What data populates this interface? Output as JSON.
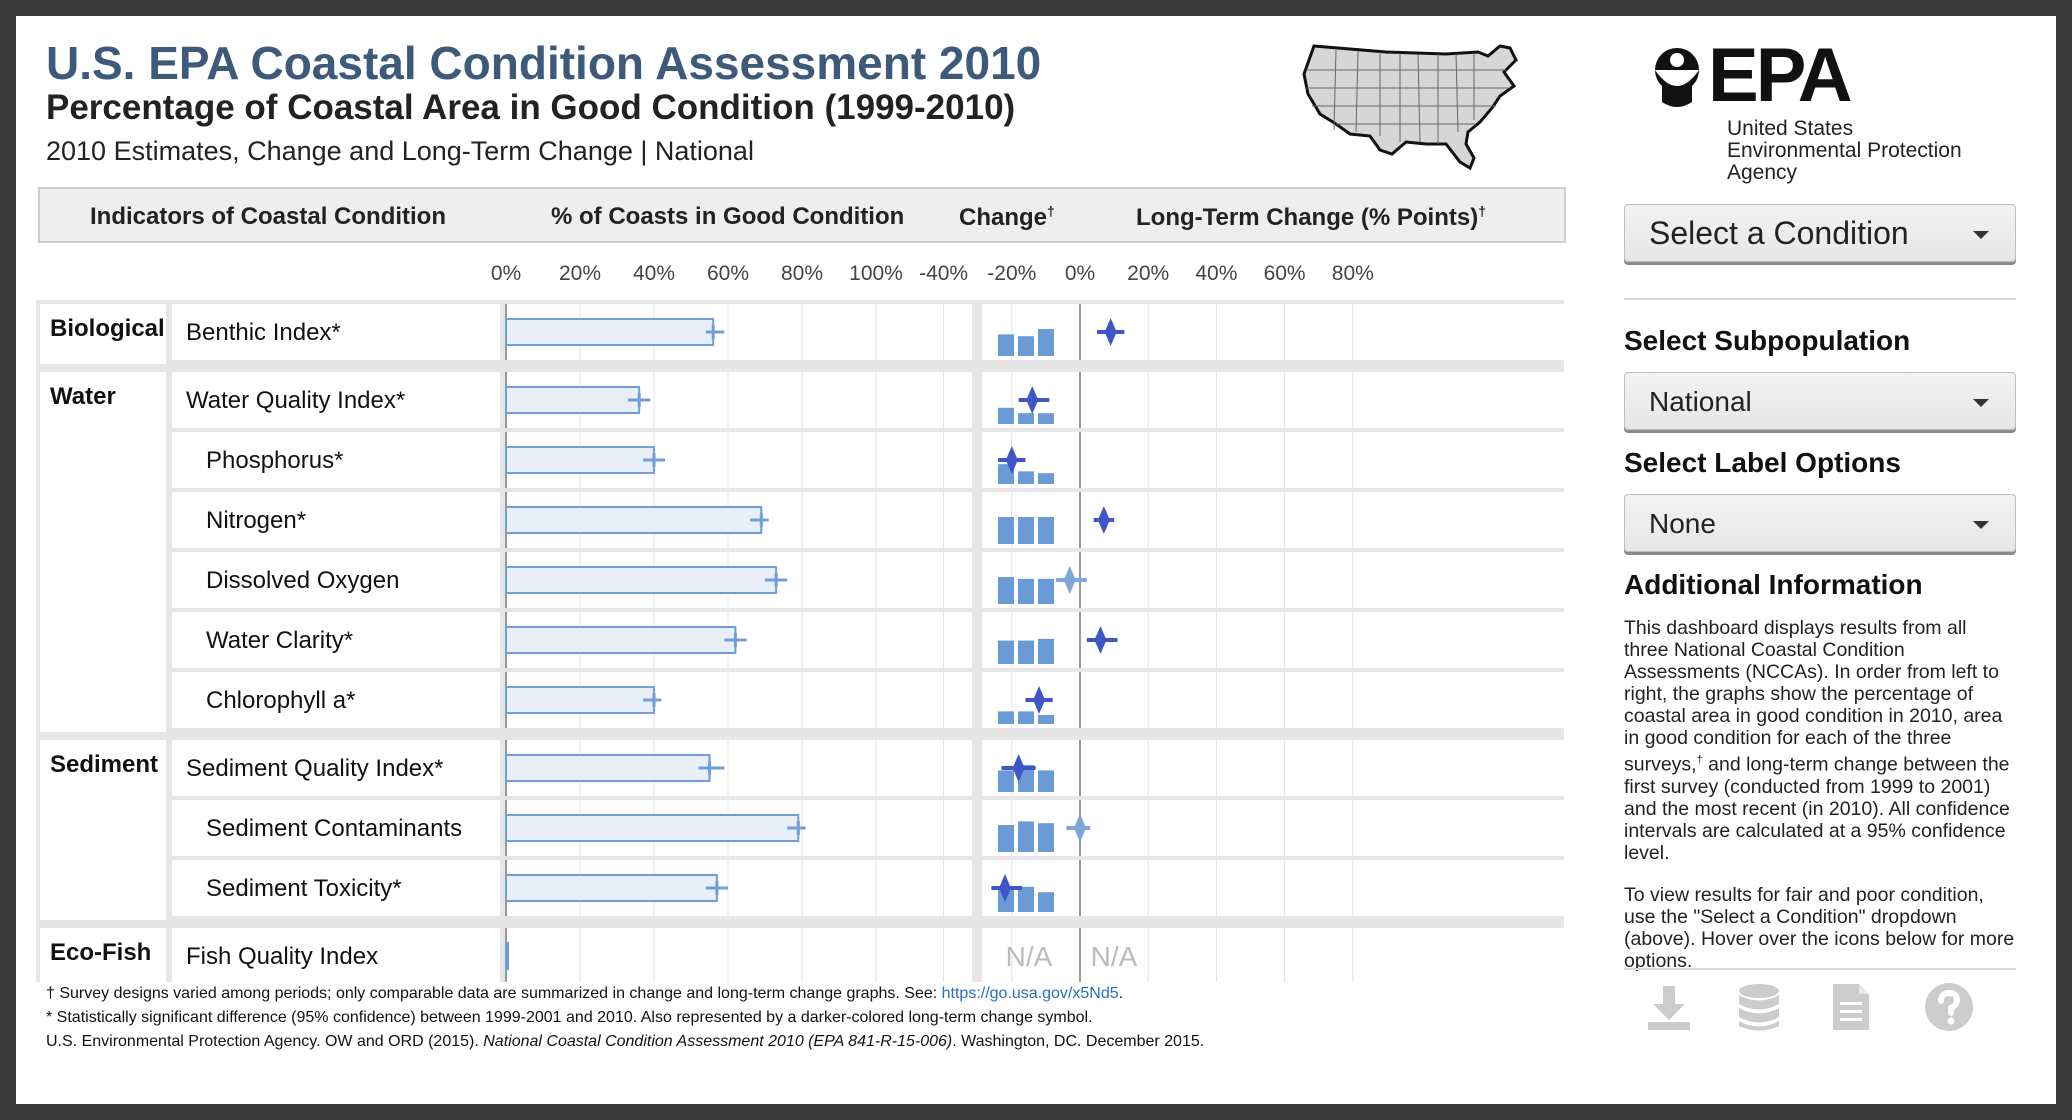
{
  "header": {
    "title": "U.S. EPA Coastal Condition Assessment 2010",
    "subtitle": "Percentage of Coastal Area in Good Condition (1999-2010)",
    "subsubtitle": "2010 Estimates, Change and Long-Term Change | National"
  },
  "logo": {
    "mark": "EPA",
    "line1": "United States",
    "line2": "Environmental Protection",
    "line3": "Agency"
  },
  "table_headers": {
    "indicators": "Indicators of Coastal Condition",
    "percent": "% of Coasts in Good Condition",
    "change": "Change",
    "longterm": "Long-Term Change (% Points)",
    "dagger": "†"
  },
  "sidebar": {
    "condition_dropdown": "Select a Condition",
    "subpop_heading": "Select Subpopulation",
    "subpop_dropdown": "National",
    "label_heading": "Select Label Options",
    "label_dropdown": "None",
    "info_heading": "Additional Information",
    "info_p1_a": "This dashboard displays results from all three National Coastal Condition Assessments (NCCAs). In order from left to right, the graphs show the percentage of coastal area in good condition in 2010, area in good condition for each of the three surveys,",
    "info_p1_dagger": "†",
    "info_p1_b": " and long-term change between the first survey (conducted from 1999 to 2001) and the most recent (in 2010). All confidence intervals are calculated at a 95% confidence level.",
    "info_p2": "To view results for fair and poor condition, use the \"Select a Condition\" dropdown (above). Hover over the icons below for more options.",
    "icons": [
      "download-icon",
      "database-icon",
      "document-icon",
      "help-icon"
    ]
  },
  "footnotes": {
    "f1": "† Survey designs varied among periods; only comparable data are summarized in change and long-term change graphs. See: ",
    "f1_link": "https://go.usa.gov/x5Nd5",
    "f1_end": ".",
    "f2": "* Statistically significant difference (95% confidence) between 1999-2001 and 2010. Also represented by a darker-colored long-term change symbol.",
    "f3_a": "U.S. Environmental Protection Agency. OW and ORD (2015). ",
    "f3_b": "National Coastal Condition Assessment 2010 (EPA 841-R-15-006)",
    "f3_c": ". Washington, DC. December 2015."
  },
  "colors": {
    "title": "#3d5a7a",
    "bar_fill": "#e8eff8",
    "bar_stroke": "#6f9fd6",
    "change_bar": "#6b9bd6",
    "significant_marker": "#3f56c7",
    "nonsignificant_marker": "#7ea6dc",
    "na_text": "#bbbbbb"
  },
  "chart_data": {
    "type": "bar",
    "axis_percent": {
      "ticks": [
        "0%",
        "20%",
        "40%",
        "60%",
        "80%",
        "100%"
      ],
      "range": [
        0,
        100
      ]
    },
    "axis_longterm": {
      "ticks": [
        "-40%",
        "-20%",
        "0%",
        "20%",
        "40%",
        "60%",
        "80%"
      ],
      "range": [
        -40,
        80
      ]
    },
    "na_label": "N/A",
    "groups": [
      {
        "name": "Biological",
        "rows": [
          {
            "label": "Benthic Index*",
            "indent": false,
            "value": 56,
            "ci": [
              54,
              59
            ],
            "change": [
              12,
              11,
              15
            ],
            "longterm": 9,
            "lt_ci": [
              5,
              13
            ],
            "significant": true
          }
        ]
      },
      {
        "name": "Water",
        "rows": [
          {
            "label": "Water Quality Index*",
            "indent": false,
            "value": 36,
            "ci": [
              33,
              39
            ],
            "change": [
              9,
              6,
              6
            ],
            "longterm": -14,
            "lt_ci": [
              -18,
              -9
            ],
            "significant": true
          },
          {
            "label": "Phosphorus*",
            "indent": true,
            "value": 40,
            "ci": [
              37,
              43
            ],
            "change": [
              11,
              7,
              6
            ],
            "longterm": -20,
            "lt_ci": [
              -24,
              -16
            ],
            "significant": true
          },
          {
            "label": "Nitrogen*",
            "indent": true,
            "value": 69,
            "ci": [
              66,
              71
            ],
            "change": [
              15,
              15,
              15
            ],
            "longterm": 7,
            "lt_ci": [
              4,
              10
            ],
            "significant": true
          },
          {
            "label": "Dissolved Oxygen",
            "indent": true,
            "value": 73,
            "ci": [
              70,
              76
            ],
            "change": [
              15,
              14,
              14
            ],
            "longterm": -3,
            "lt_ci": [
              -7,
              2
            ],
            "significant": false
          },
          {
            "label": "Water Clarity*",
            "indent": true,
            "value": 62,
            "ci": [
              59,
              65
            ],
            "change": [
              13,
              13,
              14
            ],
            "longterm": 6,
            "lt_ci": [
              2,
              11
            ],
            "significant": true
          },
          {
            "label": "Chlorophyll a*",
            "indent": true,
            "value": 40,
            "ci": [
              37,
              42
            ],
            "change": [
              7,
              7,
              5
            ],
            "longterm": -12,
            "lt_ci": [
              -16,
              -8
            ],
            "significant": true
          }
        ]
      },
      {
        "name": "Sediment",
        "rows": [
          {
            "label": "Sediment Quality Index*",
            "indent": false,
            "value": 55,
            "ci": [
              52,
              59
            ],
            "change": [
              12,
              15,
              12
            ],
            "longterm": -18,
            "lt_ci": [
              -23,
              -13
            ],
            "significant": true
          },
          {
            "label": "Sediment Contaminants",
            "indent": true,
            "value": 79,
            "ci": [
              76,
              81
            ],
            "change": [
              15,
              17,
              16
            ],
            "longterm": 0,
            "lt_ci": [
              -4,
              3
            ],
            "significant": false
          },
          {
            "label": "Sediment Toxicity*",
            "indent": true,
            "value": 57,
            "ci": [
              54,
              60
            ],
            "change": [
              14,
              14,
              11
            ],
            "longterm": -22,
            "lt_ci": [
              -26,
              -17
            ],
            "significant": true
          }
        ]
      },
      {
        "name": "Eco-Fish",
        "rows": [
          {
            "label": "Fish Quality Index",
            "indent": false,
            "value": 0.5,
            "ci": null,
            "change": null,
            "longterm": null,
            "lt_ci": null,
            "significant": false
          }
        ]
      }
    ]
  }
}
